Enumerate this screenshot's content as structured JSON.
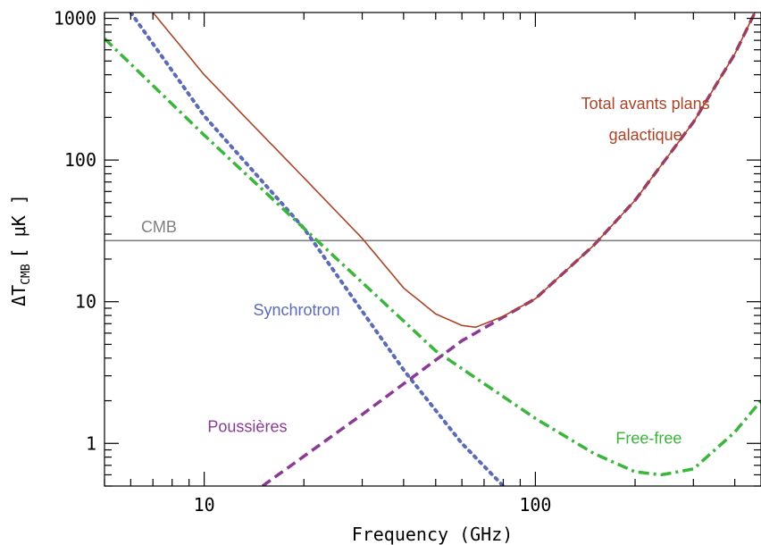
{
  "chart_data": {
    "type": "line",
    "xlabel": "Frequency (GHz)",
    "ylabel_main": "ΔT",
    "ylabel_sub": "CMB",
    "ylabel_unit": "[ μK ]",
    "x_scale": "log",
    "y_scale": "log",
    "xlim": [
      5,
      480
    ],
    "ylim": [
      0.5,
      1100
    ],
    "x_ticks": [
      {
        "value": 10,
        "label": "10"
      },
      {
        "value": 100,
        "label": "100"
      }
    ],
    "y_ticks": [
      {
        "value": 1,
        "label": "1"
      },
      {
        "value": 10,
        "label": "10"
      },
      {
        "value": 100,
        "label": "100"
      },
      {
        "value": 1000,
        "label": "1000"
      }
    ],
    "grid": false,
    "series": [
      {
        "name": "CMB",
        "color": "#808080",
        "style": "solid",
        "x": [
          5,
          480
        ],
        "y": [
          27,
          27
        ]
      },
      {
        "name": "Synchrotron",
        "color": "#5b6bb5",
        "style": "dotted",
        "x": [
          6,
          10,
          20,
          40,
          60,
          80
        ],
        "y": [
          1100,
          205,
          33,
          3.3,
          1.0,
          0.5
        ]
      },
      {
        "name": "Free-free",
        "color": "#3bb53b",
        "style": "dashdot",
        "x": [
          5,
          10,
          20,
          50,
          100,
          150,
          200,
          240,
          300,
          400,
          480
        ],
        "y": [
          720,
          150,
          33,
          4.5,
          1.5,
          0.85,
          0.63,
          0.6,
          0.66,
          1.2,
          2.0
        ]
      },
      {
        "name": "Poussières",
        "color": "#8b3a96",
        "style": "dashed",
        "x": [
          15,
          30,
          60,
          100,
          150,
          200,
          300,
          400,
          460
        ],
        "y": [
          0.5,
          1.6,
          5.3,
          10.5,
          25,
          52,
          185,
          560,
          1100
        ]
      },
      {
        "name": "Total avants plans galactique",
        "color": "#a94428",
        "style": "solid",
        "x": [
          7,
          10,
          15,
          20,
          30,
          40,
          50,
          60,
          66,
          80,
          100,
          150,
          200,
          300,
          400,
          460
        ],
        "y": [
          1100,
          400,
          150,
          75,
          28,
          12.5,
          8.2,
          6.8,
          6.6,
          7.9,
          10.5,
          25,
          52,
          185,
          560,
          1100
        ]
      }
    ],
    "annotations": [
      {
        "text": "CMB",
        "color": "#808080",
        "x": 7.3,
        "y": 31
      },
      {
        "text": "Synchrotron",
        "color": "#5b6bb5",
        "x": 19,
        "y": 8.0
      },
      {
        "text": "Free-free",
        "color": "#3bb53b",
        "x": 220,
        "y": 1.0
      },
      {
        "text": "Poussières",
        "color": "#8b3a96",
        "x": 13.5,
        "y": 1.2
      },
      {
        "text": "Total avants plans",
        "color": "#a94428",
        "x": 215,
        "y": 230
      },
      {
        "text": "galactique",
        "color": "#a94428",
        "x": 215,
        "y": 138
      }
    ]
  }
}
